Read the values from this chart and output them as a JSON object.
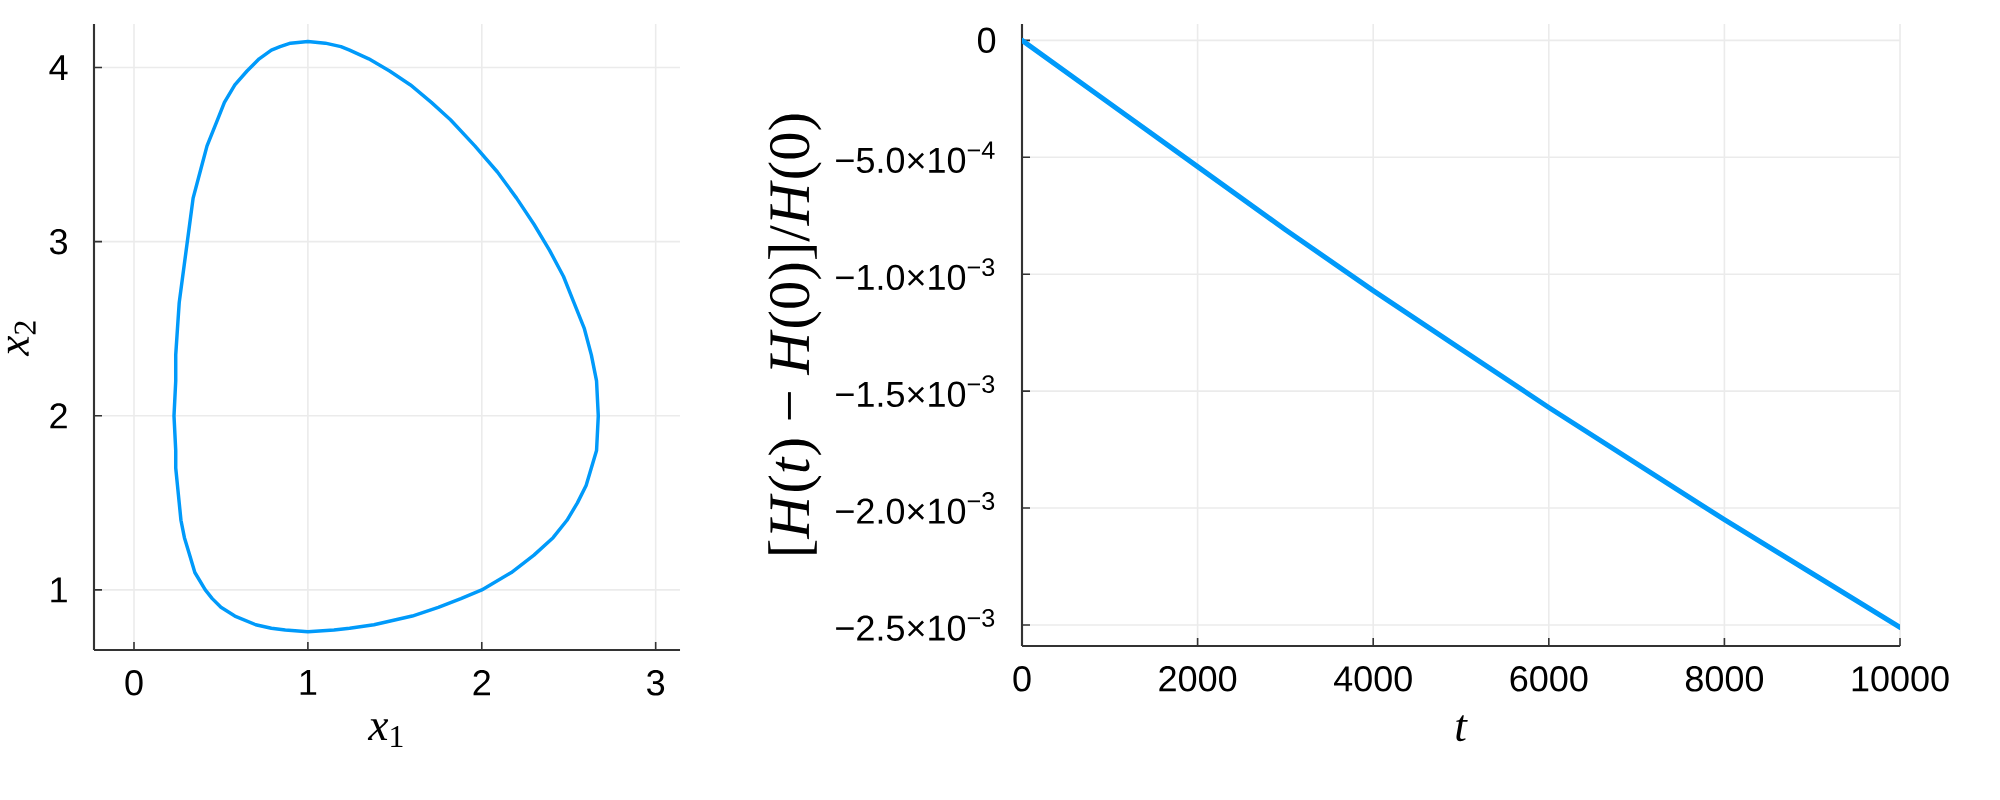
{
  "chart_data": [
    {
      "type": "line",
      "xlabel": "*x*$_{1}$",
      "ylabel": "*x*$_{2}$",
      "color": "#009afa",
      "x": [
        1.0,
        1.15,
        1.24,
        1.38,
        1.6,
        1.75,
        1.88,
        2.0,
        2.17,
        2.3,
        2.41,
        2.49,
        2.55,
        2.6,
        2.63,
        2.66,
        2.67,
        2.66,
        2.63,
        2.59,
        2.53,
        2.47,
        2.39,
        2.3,
        2.2,
        2.09,
        1.96,
        1.82,
        1.71,
        1.59,
        1.47,
        1.35,
        1.24,
        1.19,
        1.1,
        1.0,
        0.9,
        0.84,
        0.79,
        0.72,
        0.65,
        0.58,
        0.52,
        0.48,
        0.42,
        0.38,
        0.34,
        0.32,
        0.3,
        0.28,
        0.26,
        0.25,
        0.24,
        0.24,
        0.23,
        0.24,
        0.24,
        0.25,
        0.26,
        0.27,
        0.29,
        0.32,
        0.35,
        0.41,
        0.45,
        0.5,
        0.58,
        0.7,
        0.79,
        0.87,
        1.0,
        1.15
      ],
      "values": [
        0.76,
        0.77,
        0.78,
        0.8,
        0.85,
        0.9,
        0.95,
        1.0,
        1.1,
        1.2,
        1.3,
        1.4,
        1.5,
        1.6,
        1.7,
        1.8,
        2.0,
        2.2,
        2.35,
        2.5,
        2.65,
        2.8,
        2.95,
        3.1,
        3.25,
        3.4,
        3.55,
        3.7,
        3.8,
        3.9,
        3.98,
        4.05,
        4.1,
        4.12,
        4.14,
        4.15,
        4.14,
        4.12,
        4.1,
        4.05,
        3.98,
        3.9,
        3.8,
        3.7,
        3.55,
        3.4,
        3.25,
        3.1,
        2.95,
        2.8,
        2.65,
        2.5,
        2.35,
        2.2,
        2.0,
        1.8,
        1.7,
        1.6,
        1.5,
        1.4,
        1.3,
        1.2,
        1.1,
        1.0,
        0.95,
        0.9,
        0.85,
        0.8,
        0.78,
        0.77,
        0.76,
        0.77
      ],
      "xlim": [
        -0.23,
        3.14
      ],
      "ylim": [
        0.655,
        4.25
      ],
      "xticks": [
        0,
        1,
        2,
        3
      ],
      "yticks": [
        1,
        2,
        3,
        4
      ],
      "grid": true
    },
    {
      "type": "line",
      "xlabel": "*t*",
      "ylabel": "[*H*(*t*) − *H*(0)]/*H*(0)",
      "color": "#009afa",
      "x": [
        0,
        1000,
        2000,
        3000,
        4000,
        5000,
        6000,
        7000,
        8000,
        9000,
        10000
      ],
      "values": [
        0.0,
        -0.00027,
        -0.00054,
        -0.00081,
        -0.00107,
        -0.00132,
        -0.00157,
        -0.00181,
        -0.00205,
        -0.00228,
        -0.00251
      ],
      "xlim": [
        0,
        10000
      ],
      "ylim": [
        -0.00259,
        7e-05
      ],
      "xticks": [
        0,
        2000,
        4000,
        6000,
        8000,
        10000
      ],
      "yticks": [
        0,
        {
          "value": -0.0005,
          "label": "−5.0×10$^{−4}$"
        },
        {
          "value": -0.001,
          "label": "−1.0×10$^{−3}$"
        },
        {
          "value": -0.0015,
          "label": "−1.5×10$^{−3}$"
        },
        {
          "value": -0.002,
          "label": "−2.0×10$^{−3}$"
        },
        {
          "value": -0.0025,
          "label": "−2.5×10$^{−3}$"
        }
      ],
      "grid": true
    }
  ]
}
